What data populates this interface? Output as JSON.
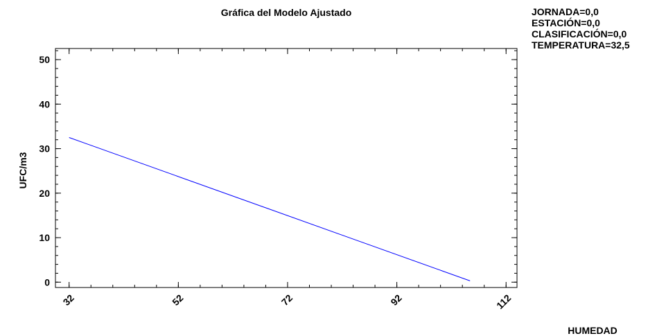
{
  "chart_data": {
    "type": "line",
    "title": "Gráfica del Modelo Ajustado",
    "xlabel": "HUMEDAD",
    "ylabel": "UFC/m3",
    "annotations": [
      "JORNADA=0,0",
      "ESTACIÓN=0,0",
      "CLASIFICACIÓN=0,0",
      "TEMPERATURA=32,5"
    ],
    "x": [
      32,
      105.4
    ],
    "series": [
      {
        "name": "UFC/m3",
        "color": "#0000ff",
        "values": [
          32.5,
          0.3
        ]
      }
    ],
    "xlim": [
      29.5,
      114
    ],
    "xticks": [
      32,
      52,
      72,
      92,
      112
    ],
    "ylim": [
      -1.2,
      52.5
    ],
    "yticks": [
      0,
      10,
      20,
      30,
      40,
      50
    ]
  }
}
